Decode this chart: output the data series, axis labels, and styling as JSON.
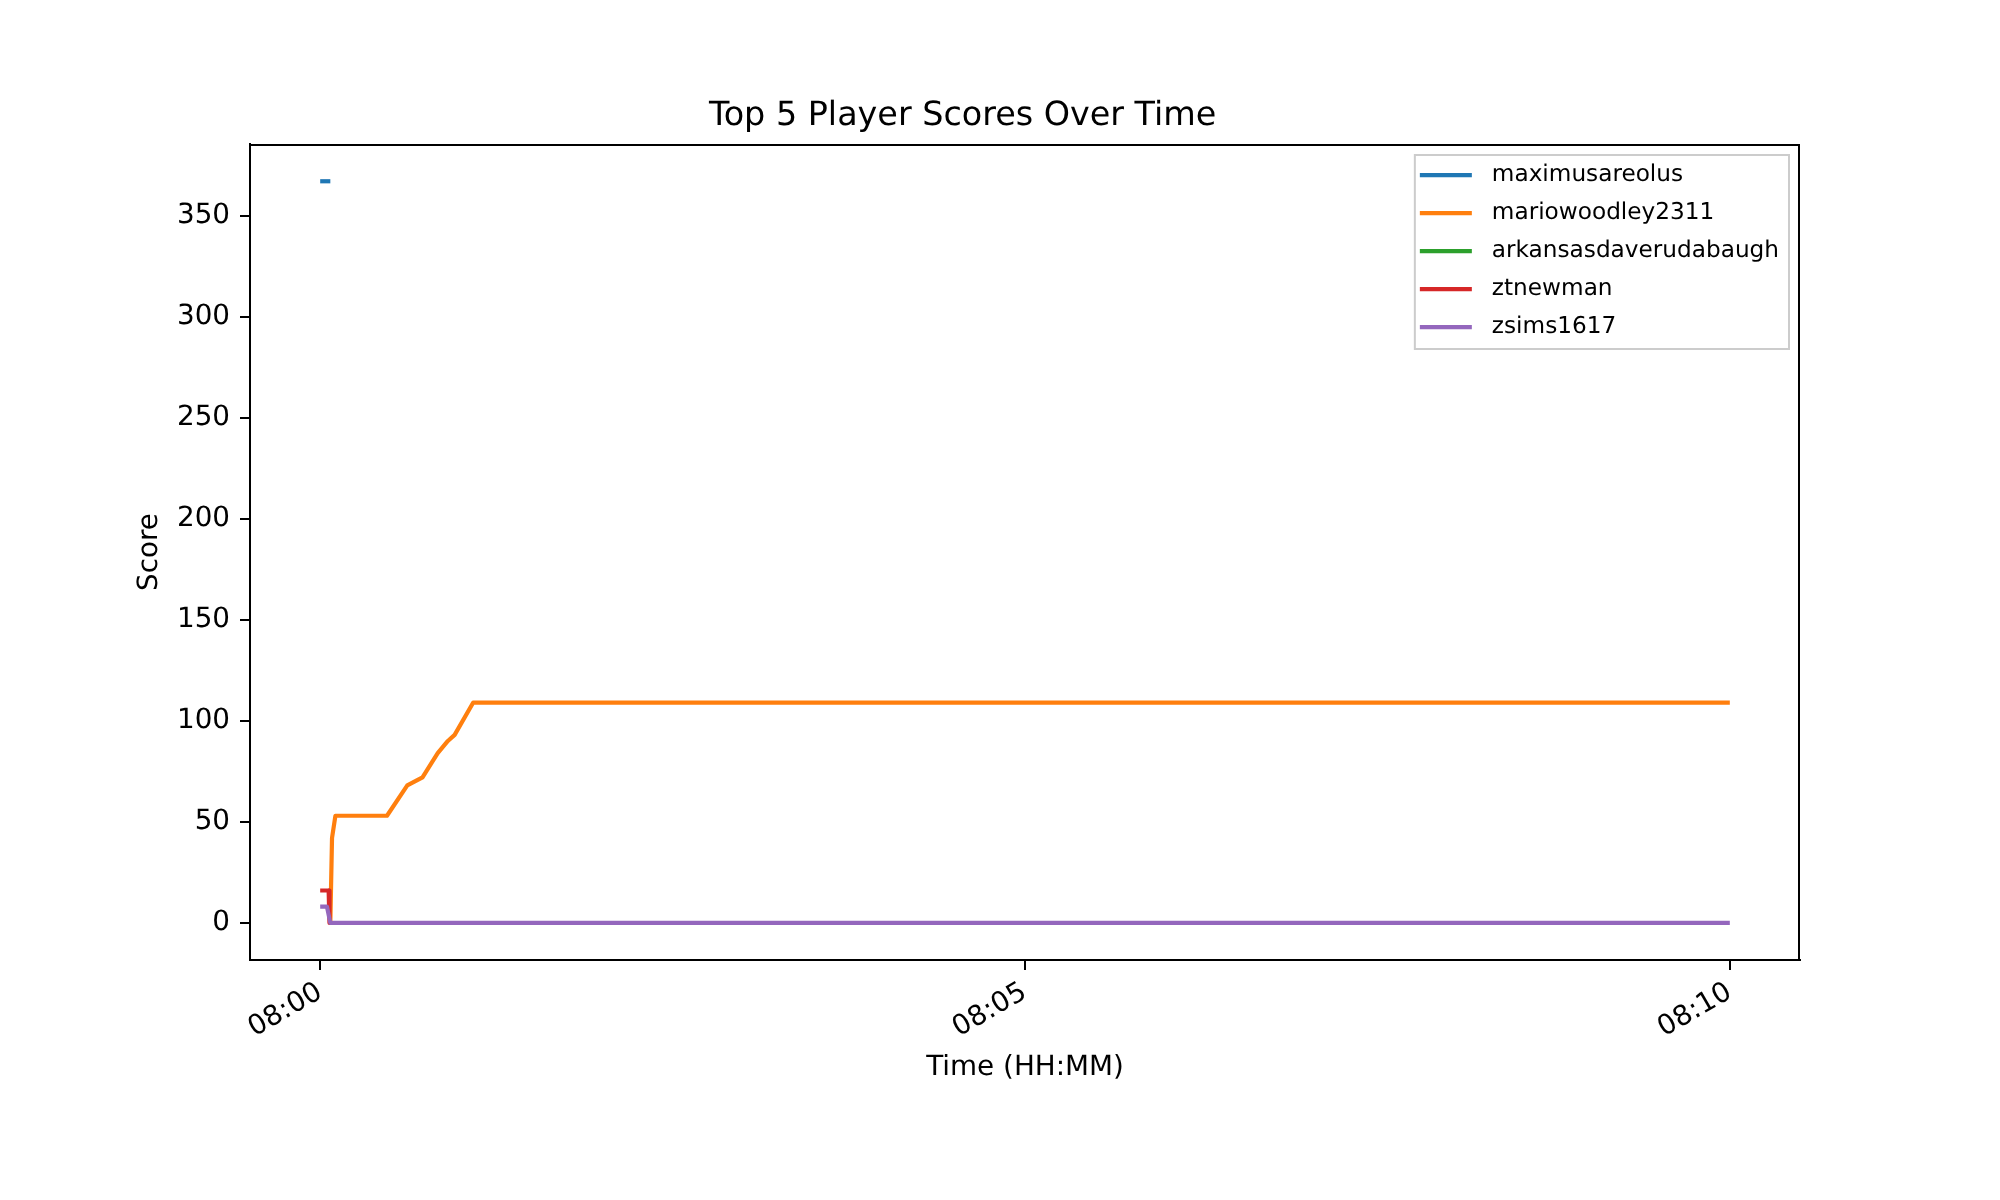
{
  "chart_data": {
    "type": "line",
    "title": "Top 5 Player Scores Over Time",
    "xlabel": "Time (HH:MM)",
    "ylabel": "Score",
    "series": [
      {
        "name": "maximusareolus",
        "color": "#1f77b4",
        "x": [
          8.0,
          8.0012
        ],
        "values": [
          367,
          367
        ]
      },
      {
        "name": "mariowoodley2311",
        "color": "#ff7f0e",
        "x": [
          8.0012,
          8.0014,
          8.0018,
          8.0079,
          8.0103,
          8.0121,
          8.0139,
          8.0151,
          8.0159,
          8.0181,
          8.1667
        ],
        "values": [
          0,
          42,
          53,
          53,
          68,
          72,
          84,
          90,
          93,
          109,
          109
        ]
      },
      {
        "name": "arkansasdaverudabaugh",
        "color": "#2ca02c"
      },
      {
        "name": "ztnewman",
        "color": "#d62728",
        "x": [
          8.0,
          8.001,
          8.0011
        ],
        "values": [
          16,
          16,
          0
        ]
      },
      {
        "name": "zsims1617",
        "color": "#9467bd",
        "x": [
          8.0,
          8.0008,
          8.0012,
          8.1667
        ],
        "values": [
          8,
          8,
          0,
          0
        ]
      }
    ],
    "xlim": [
      7.9917,
      8.175
    ],
    "xticks": [
      {
        "value": 8,
        "label": "08:00"
      },
      {
        "value": 8.0833,
        "label": "08:05"
      },
      {
        "value": 8.1667,
        "label": "08:10"
      }
    ],
    "ylim": [
      -18.4,
      385.4
    ],
    "yticks": [
      0,
      50,
      100,
      150,
      200,
      250,
      300,
      350
    ],
    "grid": false,
    "legend": "top right",
    "line_style": "solid"
  }
}
